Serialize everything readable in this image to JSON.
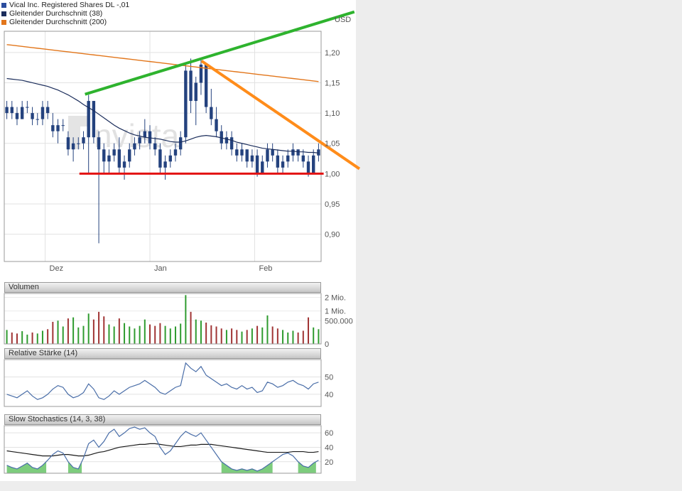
{
  "watermark": "nvista",
  "legend": {
    "items": [
      {
        "label": "Vical Inc. Registered Shares DL -,01",
        "color": "#2b4d9e"
      },
      {
        "label": "Gleitender Durchschnitt (38)",
        "color": "#1b2d5b"
      },
      {
        "label": "Gleitender Durchschnitt (200)",
        "color": "#e2761b"
      }
    ]
  },
  "panels": {
    "volume_title": "Volumen",
    "rsi_title": "Relative Stärke (14)",
    "stochastics_title": "Slow Stochastics (14, 3, 38)"
  },
  "chart_data": [
    {
      "id": "price",
      "type": "candlestick",
      "instrument": "Vical Inc. Registered Shares DL -,01",
      "currency_label": "USD",
      "ylim": [
        0.855,
        1.235
      ],
      "y_ticks": [
        {
          "value": 1.2,
          "label": "1,20"
        },
        {
          "value": 1.15,
          "label": "1,15"
        },
        {
          "value": 1.1,
          "label": "1,10"
        },
        {
          "value": 1.05,
          "label": "1,05"
        },
        {
          "value": 1.0,
          "label": "1,00"
        },
        {
          "value": 0.95,
          "label": "0,95"
        },
        {
          "value": 0.9,
          "label": "0,90"
        }
      ],
      "x_months": [
        {
          "label": "Dez",
          "day": 7.5
        },
        {
          "label": "Jan",
          "day": 28
        },
        {
          "label": "Feb",
          "day": 48.5
        }
      ],
      "colors": {
        "candle": "#24427e",
        "ma38": "#1b2d5b",
        "ma200": "#e2761b"
      },
      "candles": [
        [
          1.1,
          1.12,
          1.09,
          1.11
        ],
        [
          1.11,
          1.12,
          1.09,
          1.1
        ],
        [
          1.1,
          1.11,
          1.08,
          1.09
        ],
        [
          1.09,
          1.12,
          1.09,
          1.11
        ],
        [
          1.11,
          1.12,
          1.1,
          1.11
        ],
        [
          1.1,
          1.11,
          1.08,
          1.09
        ],
        [
          1.09,
          1.1,
          1.08,
          1.09
        ],
        [
          1.09,
          1.12,
          1.08,
          1.11
        ],
        [
          1.11,
          1.12,
          1.09,
          1.1
        ],
        [
          1.08,
          1.1,
          1.06,
          1.07
        ],
        [
          1.07,
          1.09,
          1.05,
          1.08
        ],
        [
          1.08,
          1.09,
          1.07,
          1.08
        ],
        [
          1.06,
          1.07,
          1.03,
          1.04
        ],
        [
          1.04,
          1.06,
          1.02,
          1.05
        ],
        [
          1.05,
          1.06,
          1.04,
          1.05
        ],
        [
          1.05,
          1.07,
          1.04,
          1.06
        ],
        [
          1.06,
          1.13,
          1.0,
          1.12
        ],
        [
          1.12,
          1.12,
          1.05,
          1.06
        ],
        [
          1.06,
          1.07,
          0.885,
          1.04
        ],
        [
          1.04,
          1.05,
          1.0,
          1.02
        ],
        [
          1.02,
          1.04,
          1.0,
          1.03
        ],
        [
          1.03,
          1.05,
          1.02,
          1.04
        ],
        [
          1.04,
          1.06,
          1.0,
          1.01
        ],
        [
          1.01,
          1.03,
          0.99,
          1.02
        ],
        [
          1.02,
          1.05,
          1.01,
          1.04
        ],
        [
          1.04,
          1.06,
          1.03,
          1.05
        ],
        [
          1.05,
          1.07,
          1.04,
          1.06
        ],
        [
          1.06,
          1.09,
          1.05,
          1.07
        ],
        [
          1.07,
          1.08,
          1.04,
          1.05
        ],
        [
          1.05,
          1.06,
          1.03,
          1.04
        ],
        [
          1.04,
          1.05,
          1.0,
          1.01
        ],
        [
          1.01,
          1.03,
          0.99,
          1.02
        ],
        [
          1.02,
          1.04,
          1.01,
          1.03
        ],
        [
          1.03,
          1.05,
          1.02,
          1.04
        ],
        [
          1.04,
          1.07,
          1.03,
          1.06
        ],
        [
          1.06,
          1.18,
          1.05,
          1.17
        ],
        [
          1.17,
          1.19,
          1.1,
          1.12
        ],
        [
          1.12,
          1.16,
          1.08,
          1.15
        ],
        [
          1.15,
          1.19,
          1.13,
          1.18
        ],
        [
          1.18,
          1.18,
          1.1,
          1.11
        ],
        [
          1.11,
          1.14,
          1.08,
          1.09
        ],
        [
          1.09,
          1.11,
          1.06,
          1.07
        ],
        [
          1.07,
          1.08,
          1.04,
          1.05
        ],
        [
          1.05,
          1.07,
          1.04,
          1.06
        ],
        [
          1.06,
          1.07,
          1.03,
          1.04
        ],
        [
          1.04,
          1.05,
          1.02,
          1.03
        ],
        [
          1.03,
          1.05,
          1.02,
          1.04
        ],
        [
          1.04,
          1.04,
          1.01,
          1.02
        ],
        [
          1.02,
          1.04,
          1.01,
          1.03
        ],
        [
          1.03,
          1.04,
          0.995,
          1.0
        ],
        [
          1.0,
          1.03,
          1.0,
          1.02
        ],
        [
          1.02,
          1.05,
          1.01,
          1.04
        ],
        [
          1.04,
          1.05,
          1.02,
          1.03
        ],
        [
          1.03,
          1.04,
          1.0,
          1.01
        ],
        [
          1.01,
          1.03,
          1.0,
          1.02
        ],
        [
          1.02,
          1.04,
          1.01,
          1.03
        ],
        [
          1.03,
          1.05,
          1.02,
          1.04
        ],
        [
          1.04,
          1.04,
          1.02,
          1.03
        ],
        [
          1.03,
          1.04,
          1.01,
          1.02
        ],
        [
          1.02,
          1.03,
          0.995,
          1.0
        ],
        [
          1.0,
          1.04,
          1.0,
          1.03
        ],
        [
          1.03,
          1.05,
          1.02,
          1.04
        ]
      ],
      "ma38": [
        1.157,
        1.156,
        1.155,
        1.154,
        1.152,
        1.15,
        1.148,
        1.146,
        1.144,
        1.141,
        1.138,
        1.134,
        1.13,
        1.125,
        1.12,
        1.114,
        1.109,
        1.104,
        1.098,
        1.092,
        1.086,
        1.08,
        1.075,
        1.071,
        1.067,
        1.064,
        1.062,
        1.06,
        1.059,
        1.058,
        1.057,
        1.055,
        1.053,
        1.052,
        1.052,
        1.054,
        1.057,
        1.06,
        1.062,
        1.063,
        1.062,
        1.061,
        1.059,
        1.057,
        1.055,
        1.052,
        1.05,
        1.048,
        1.046,
        1.044,
        1.042,
        1.041,
        1.04,
        1.039,
        1.038,
        1.037,
        1.037,
        1.036,
        1.036,
        1.035,
        1.035,
        1.034
      ],
      "ma200": [
        1.213,
        1.212,
        1.211,
        1.21,
        1.209,
        1.208,
        1.207,
        1.206,
        1.205,
        1.204,
        1.203,
        1.202,
        1.201,
        1.2,
        1.199,
        1.198,
        1.197,
        1.196,
        1.195,
        1.194,
        1.193,
        1.192,
        1.191,
        1.19,
        1.189,
        1.188,
        1.187,
        1.186,
        1.185,
        1.184,
        1.183,
        1.182,
        1.181,
        1.18,
        1.179,
        1.178,
        1.177,
        1.176,
        1.175,
        1.174,
        1.173,
        1.172,
        1.171,
        1.17,
        1.169,
        1.168,
        1.167,
        1.166,
        1.165,
        1.164,
        1.163,
        1.162,
        1.161,
        1.16,
        1.159,
        1.158,
        1.157,
        1.156,
        1.155,
        1.154,
        1.153,
        1.152
      ],
      "annotations": {
        "support": {
          "price": 1.0,
          "from_day": 14.2,
          "to_day": 62,
          "color": "#e31212"
        },
        "trend_up": {
          "from": {
            "day": 15.3,
            "price": 1.131
          },
          "to": {
            "day": 68,
            "price": 1.267
          },
          "color": "#2eb32e"
        },
        "trend_down": {
          "from": {
            "day": 38.1,
            "price": 1.186
          },
          "to": {
            "day": 69,
            "price": 1.008
          },
          "color": "#ff8c1a"
        }
      }
    },
    {
      "id": "volume",
      "type": "bar",
      "title": "Volumen",
      "unit": "Mio.",
      "scale": "sqrt",
      "ylim": [
        0,
        2.35
      ],
      "y_ticks": [
        {
          "value": 2,
          "label": "2 Mio."
        },
        {
          "value": 1,
          "label": "1 Mio."
        },
        {
          "value": 0.5,
          "label": "500.000"
        },
        {
          "value": 0,
          "label": "0"
        }
      ],
      "colors": {
        "up": "#2f9b2f",
        "down": "#a03434"
      },
      "values": [
        0.18,
        0.12,
        0.1,
        0.15,
        0.08,
        0.12,
        0.1,
        0.16,
        0.2,
        0.45,
        0.5,
        0.28,
        0.6,
        0.65,
        0.25,
        0.3,
        0.85,
        0.55,
        0.95,
        0.7,
        0.35,
        0.28,
        0.6,
        0.4,
        0.28,
        0.22,
        0.3,
        0.55,
        0.35,
        0.3,
        0.4,
        0.3,
        0.22,
        0.28,
        0.38,
        2.2,
        0.95,
        0.55,
        0.5,
        0.42,
        0.32,
        0.28,
        0.22,
        0.18,
        0.22,
        0.18,
        0.14,
        0.18,
        0.22,
        0.3,
        0.25,
        0.75,
        0.28,
        0.22,
        0.18,
        0.12,
        0.16,
        0.12,
        0.16,
        0.65,
        0.25,
        0.2
      ]
    },
    {
      "id": "rsi",
      "type": "line",
      "title": "Relative Stärke (14)",
      "ylim": [
        33,
        60
      ],
      "y_ticks": [
        {
          "value": 50,
          "label": "50"
        },
        {
          "value": 40,
          "label": "40"
        }
      ],
      "color": "#4a6ea8",
      "values": [
        40,
        39,
        38,
        40,
        42,
        39,
        37,
        38,
        40,
        43,
        45,
        44,
        40,
        38,
        39,
        41,
        46,
        43,
        38,
        37,
        39,
        42,
        40,
        42,
        44,
        45,
        46,
        48,
        46,
        44,
        41,
        40,
        42,
        44,
        45,
        58,
        55,
        53,
        56,
        51,
        49,
        47,
        45,
        46,
        44,
        43,
        45,
        43,
        44,
        41,
        42,
        47,
        46,
        44,
        45,
        47,
        48,
        46,
        45,
        43,
        46,
        47
      ]
    },
    {
      "id": "stochastics",
      "type": "line",
      "title": "Slow Stochastics (14, 3, 38)",
      "ylim": [
        4,
        70
      ],
      "y_ticks": [
        {
          "value": 60,
          "label": "60"
        },
        {
          "value": 40,
          "label": "40"
        },
        {
          "value": 20,
          "label": "20"
        }
      ],
      "oversold": {
        "threshold": 20,
        "fill": "#7dcc7d"
      },
      "series": [
        {
          "name": "stochastic",
          "color": "#4a6ea8",
          "values": [
            15,
            12,
            10,
            14,
            18,
            12,
            10,
            15,
            22,
            30,
            35,
            32,
            20,
            12,
            10,
            25,
            45,
            50,
            40,
            48,
            60,
            65,
            55,
            60,
            66,
            68,
            65,
            67,
            60,
            55,
            40,
            30,
            35,
            45,
            55,
            62,
            58,
            55,
            60,
            50,
            40,
            30,
            20,
            15,
            10,
            8,
            10,
            8,
            10,
            7,
            10,
            15,
            20,
            25,
            30,
            32,
            28,
            20,
            14,
            12,
            18,
            22
          ]
        },
        {
          "name": "signal",
          "color": "#1a1a1a",
          "values": [
            35,
            34,
            33,
            32,
            31,
            30,
            29,
            28,
            28,
            28,
            29,
            30,
            30,
            29,
            28,
            28,
            29,
            31,
            33,
            34,
            36,
            38,
            40,
            41,
            42,
            43,
            44,
            44,
            45,
            45,
            44,
            43,
            42,
            41,
            41,
            42,
            43,
            43,
            44,
            44,
            44,
            43,
            42,
            41,
            40,
            39,
            38,
            37,
            36,
            35,
            34,
            33,
            33,
            33,
            33,
            33,
            34,
            34,
            34,
            33,
            33,
            34
          ]
        }
      ]
    }
  ]
}
